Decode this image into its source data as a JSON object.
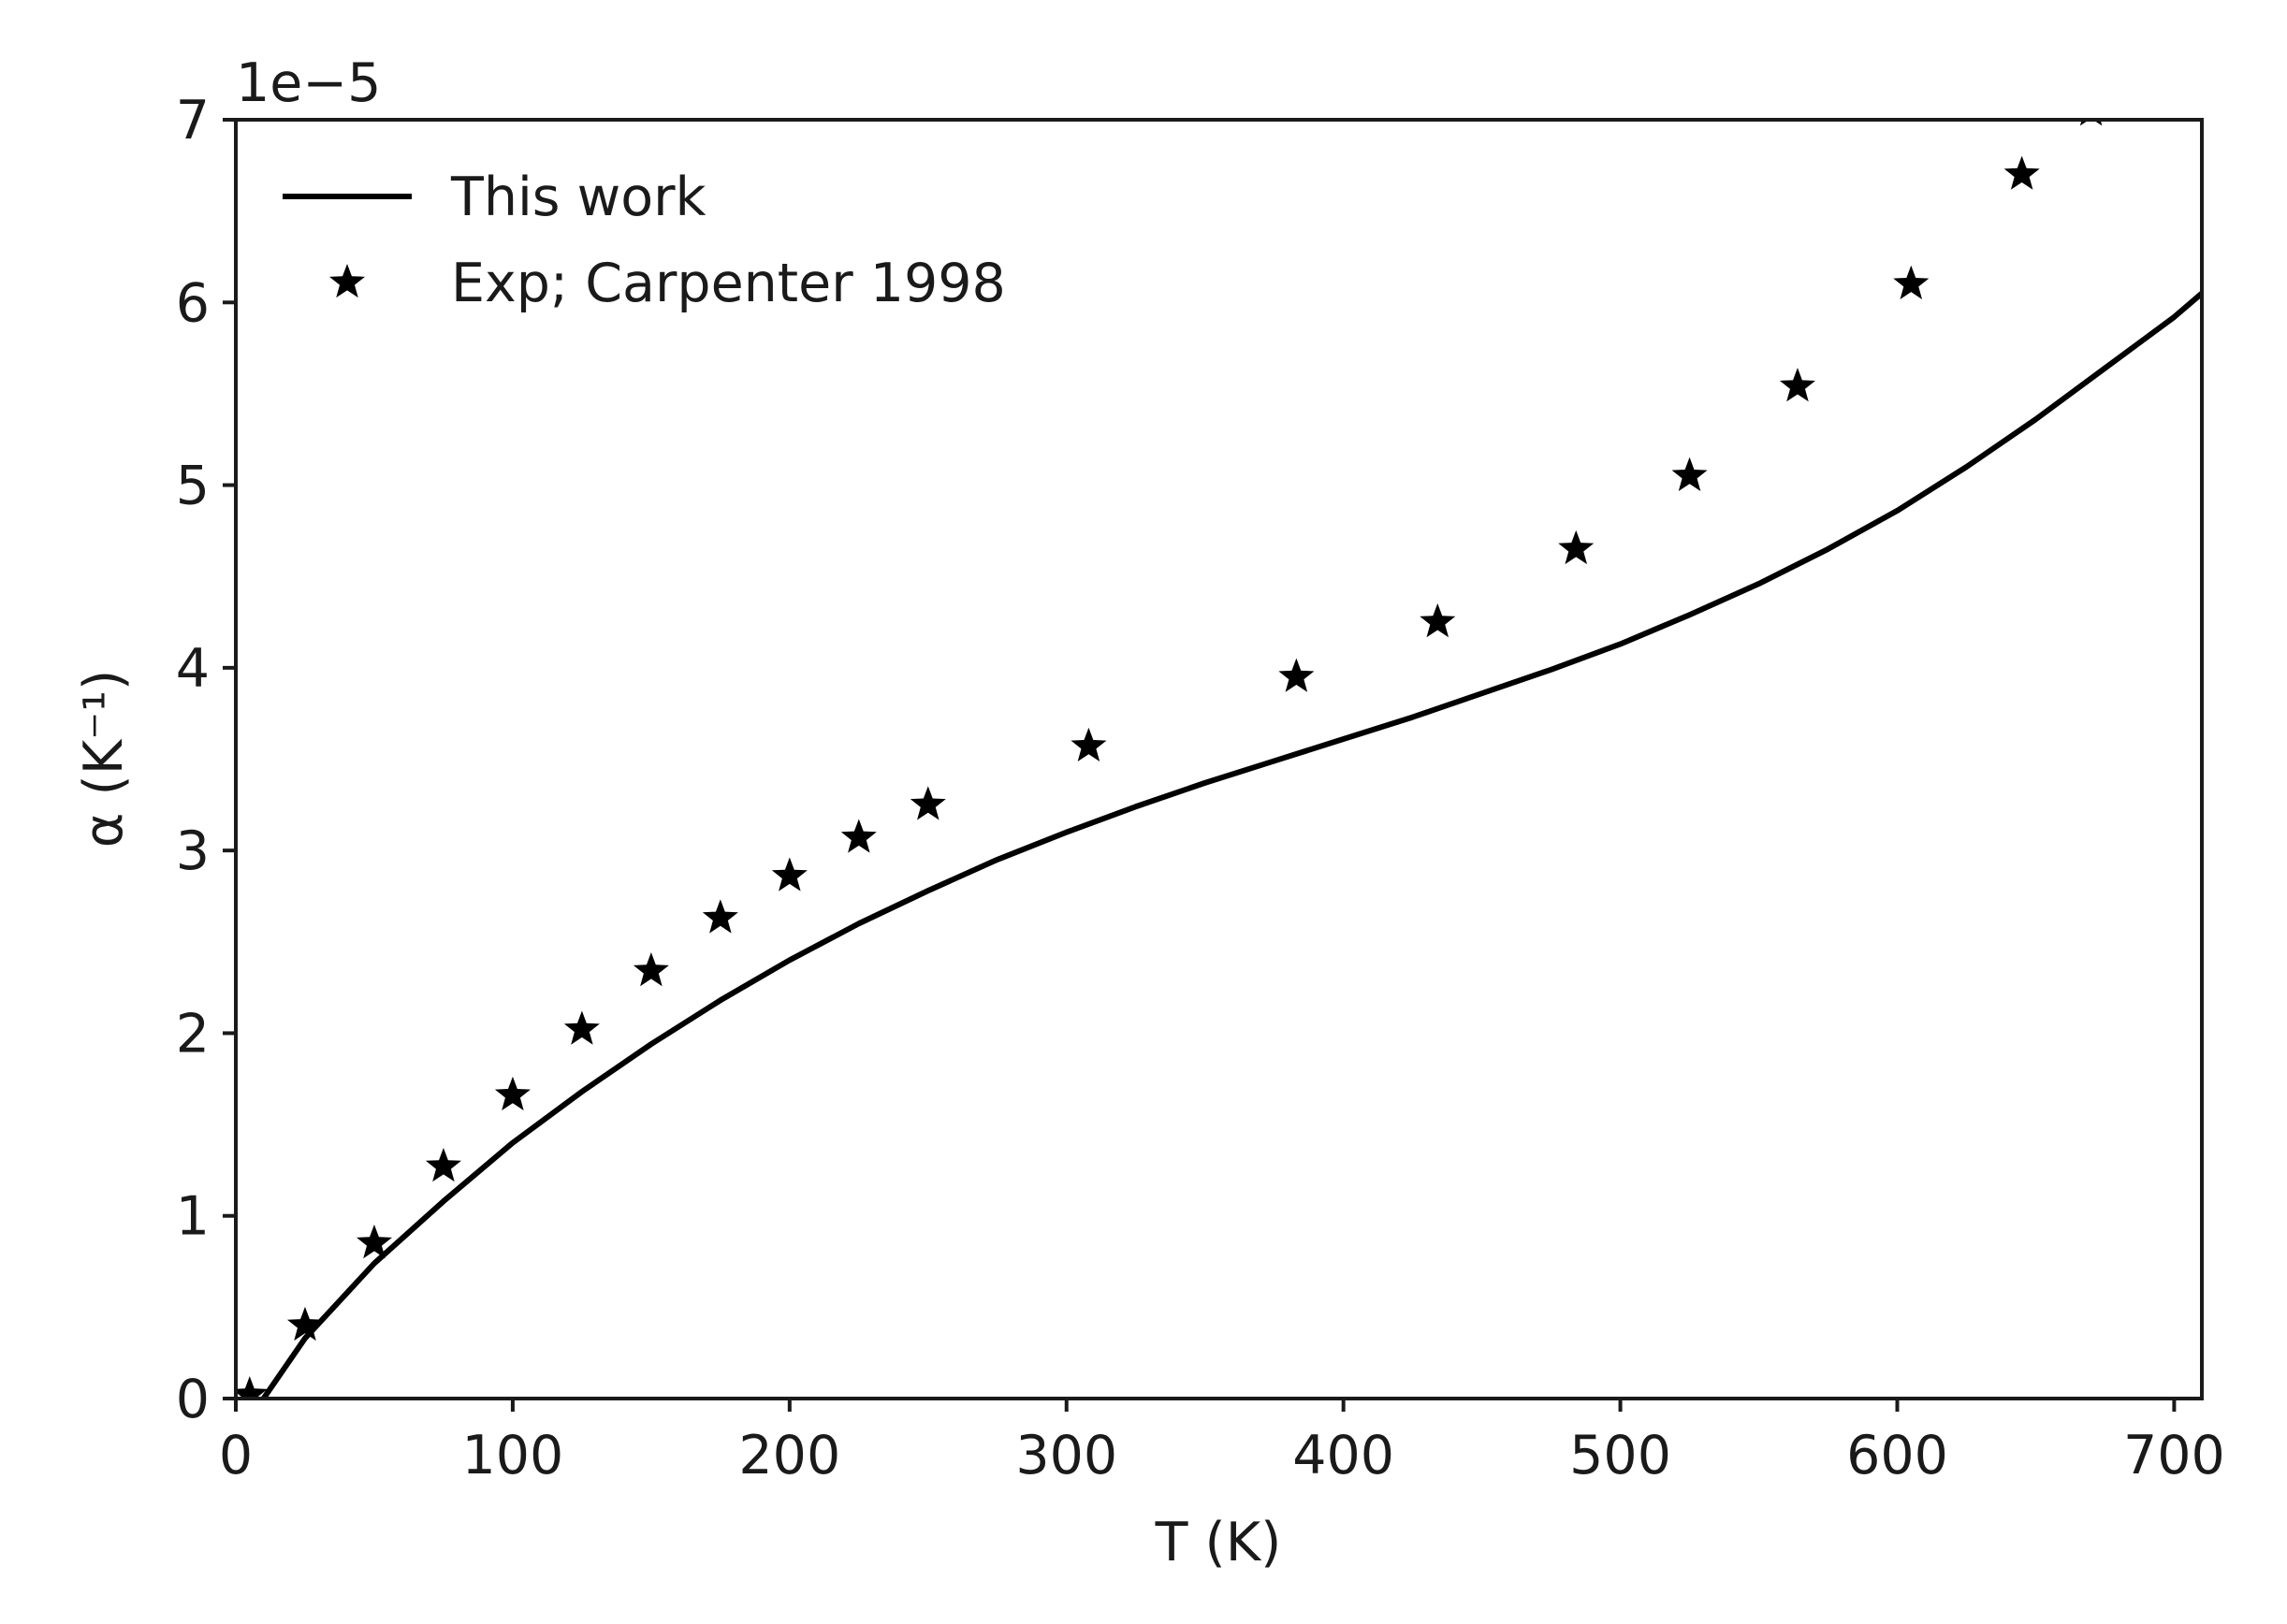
{
  "chart_data": {
    "type": "line",
    "title": "",
    "xlabel": "T  (K)",
    "ylabel": "α  (K⁻¹)",
    "y_offset_text": "1e−5",
    "xlim": [
      0,
      710
    ],
    "ylim": [
      0,
      7
    ],
    "y_scale_factor": 1e-05,
    "xticks": [
      0,
      100,
      200,
      300,
      400,
      500,
      600,
      700
    ],
    "yticks": [
      0,
      1,
      2,
      3,
      4,
      5,
      6,
      7
    ],
    "xtick_labels": [
      "0",
      "100",
      "200",
      "300",
      "400",
      "500",
      "600",
      "700"
    ],
    "ytick_labels": [
      "0",
      "1",
      "2",
      "3",
      "4",
      "5",
      "6",
      "7"
    ],
    "grid": false,
    "legend_position": "top-left",
    "series": [
      {
        "name": "This work",
        "style": "line",
        "color": "#000000",
        "x": [
          10,
          25,
          50,
          75,
          100,
          125,
          150,
          175,
          200,
          225,
          250,
          275,
          300,
          325,
          350,
          375,
          400,
          425,
          450,
          475,
          500,
          525,
          550,
          575,
          600,
          625,
          650,
          675,
          700,
          710
        ],
        "y": [
          0.0,
          0.33,
          0.74,
          1.08,
          1.4,
          1.68,
          1.94,
          2.18,
          2.4,
          2.6,
          2.78,
          2.95,
          3.1,
          3.24,
          3.37,
          3.49,
          3.61,
          3.73,
          3.86,
          3.99,
          4.13,
          4.29,
          4.46,
          4.65,
          4.86,
          5.1,
          5.36,
          5.64,
          5.92,
          6.05
        ]
      },
      {
        "name": "Exp; Carpenter 1998",
        "style": "marker",
        "marker": "star",
        "color": "#000000",
        "x": [
          5,
          25,
          50,
          75,
          100,
          125,
          150,
          175,
          200,
          225,
          250,
          308,
          383,
          434,
          484,
          525,
          564,
          605,
          645,
          670
        ],
        "y": [
          0.02,
          0.4,
          0.85,
          1.27,
          1.66,
          2.02,
          2.34,
          2.63,
          2.86,
          3.07,
          3.25,
          3.57,
          3.95,
          4.25,
          4.65,
          5.05,
          5.54,
          6.1,
          6.7,
          7.05
        ]
      }
    ]
  }
}
